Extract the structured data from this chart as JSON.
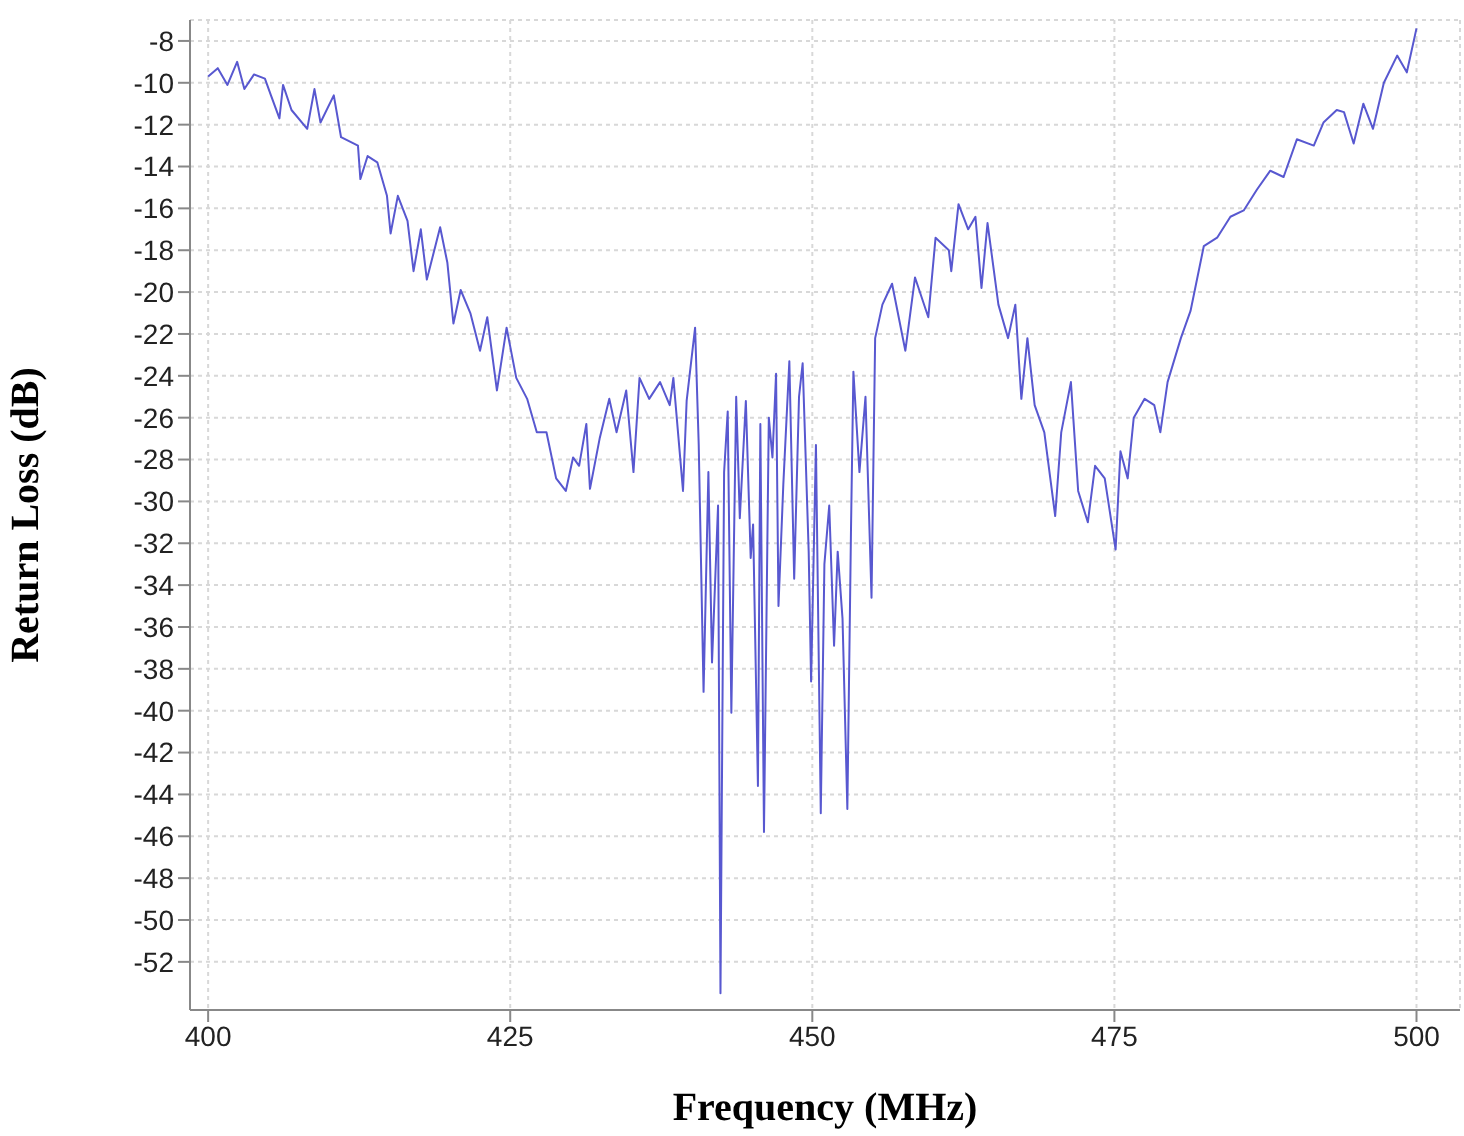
{
  "chart_data": {
    "type": "line",
    "xlabel": "Frequency (MHz)",
    "ylabel": "Return Loss (dB)",
    "xlim": [
      398.5,
      503.6
    ],
    "xticks": [
      400,
      425,
      450,
      475,
      500
    ],
    "ylim": [
      -54.3,
      -7
    ],
    "yticks": [
      -8,
      -10,
      -12,
      -14,
      -16,
      -18,
      -20,
      -22,
      -24,
      -26,
      -28,
      -30,
      -32,
      -34,
      -36,
      -38,
      -40,
      -42,
      -44,
      -46,
      -48,
      -50,
      -52
    ],
    "grid": true,
    "marker": "none",
    "line_style": "solid",
    "series": [
      {
        "color": "#5858d0",
        "x": [
          400,
          400.8,
          401.6,
          402.4,
          403,
          403.8,
          404.7,
          405.2,
          405.9,
          406.2,
          406.9,
          408.2,
          408.8,
          409.3,
          410.4,
          411,
          412.4,
          412.6,
          413.2,
          414,
          414.8,
          415.1,
          415.7,
          416.5,
          417,
          417.6,
          418.1,
          419.2,
          419.8,
          420.3,
          420.9,
          421.7,
          422.5,
          423.1,
          423.9,
          424.7,
          425.5,
          426.4,
          427.2,
          428,
          428.8,
          429.6,
          430.2,
          430.7,
          431.3,
          431.6,
          432.4,
          433.2,
          433.8,
          434.6,
          435.2,
          435.7,
          436.5,
          437.4,
          438.2,
          438.5,
          439.3,
          439.6,
          440.3,
          440.6,
          441,
          441.4,
          441.7,
          442.2,
          442.4,
          442.7,
          443,
          443.3,
          443.7,
          444,
          444.5,
          444.9,
          445.1,
          445.5,
          445.7,
          446,
          446.4,
          446.7,
          447,
          447.2,
          447.6,
          448.1,
          448.5,
          448.9,
          449.2,
          449.7,
          449.9,
          450.3,
          450.7,
          451,
          451.4,
          451.8,
          452.1,
          452.5,
          452.9,
          453.2,
          453.4,
          453.9,
          454.4,
          454.9,
          455.2,
          455.8,
          456.6,
          457.7,
          458.5,
          459.6,
          460.2,
          461.3,
          461.5,
          462.1,
          462.9,
          463.5,
          464,
          464.5,
          465.4,
          466.2,
          466.8,
          467.3,
          467.8,
          468.4,
          469.2,
          470.1,
          470.6,
          471.4,
          472,
          472.8,
          473.4,
          474.2,
          475.1,
          475.5,
          476.1,
          476.6,
          477.5,
          478.3,
          478.8,
          479.4,
          480.5,
          481.3,
          482.4,
          483.5,
          484.6,
          485.7,
          486.8,
          487.9,
          489,
          490.1,
          491.5,
          492.3,
          493.4,
          494,
          494.8,
          495.6,
          496.4,
          497.3,
          498.4,
          499.2,
          500
        ],
        "values": [
          -9.7,
          -9.3,
          -10.1,
          -9,
          -10.3,
          -9.6,
          -9.8,
          -10.6,
          -11.7,
          -10.1,
          -11.3,
          -12.2,
          -10.3,
          -11.9,
          -10.6,
          -12.6,
          -13,
          -14.6,
          -13.5,
          -13.8,
          -15.4,
          -17.2,
          -15.4,
          -16.6,
          -19,
          -17,
          -19.4,
          -16.9,
          -18.6,
          -21.5,
          -19.9,
          -21,
          -22.8,
          -21.2,
          -24.7,
          -21.7,
          -24.1,
          -25.1,
          -26.7,
          -26.7,
          -28.9,
          -29.5,
          -27.9,
          -28.3,
          -26.3,
          -29.4,
          -27,
          -25.1,
          -26.7,
          -24.7,
          -28.6,
          -24.1,
          -25.1,
          -24.3,
          -25.4,
          -24.1,
          -29.5,
          -25.2,
          -21.7,
          -27.3,
          -39.1,
          -28.6,
          -37.7,
          -30.2,
          -53.5,
          -28.6,
          -25.7,
          -40.1,
          -25,
          -30.8,
          -25.2,
          -32.7,
          -31.1,
          -43.6,
          -26.3,
          -45.8,
          -26,
          -27.9,
          -23.9,
          -35,
          -29.2,
          -23.3,
          -33.7,
          -25,
          -23.4,
          -32.4,
          -38.6,
          -27.3,
          -44.9,
          -33,
          -30.2,
          -36.9,
          -32.4,
          -35.6,
          -44.7,
          -31.4,
          -23.8,
          -28.6,
          -25,
          -34.6,
          -22.2,
          -20.6,
          -19.6,
          -22.8,
          -19.3,
          -21.2,
          -17.4,
          -18,
          -19,
          -15.8,
          -17,
          -16.4,
          -19.8,
          -16.7,
          -20.6,
          -22.2,
          -20.6,
          -25.1,
          -22.2,
          -25.4,
          -26.7,
          -30.7,
          -26.7,
          -24.3,
          -29.5,
          -31,
          -28.3,
          -28.9,
          -32.3,
          -27.6,
          -28.9,
          -26,
          -25.1,
          -25.4,
          -26.7,
          -24.3,
          -22.2,
          -20.9,
          -17.8,
          -17.4,
          -16.4,
          -16.1,
          -15.1,
          -14.2,
          -14.5,
          -12.7,
          -13,
          -11.9,
          -11.3,
          -11.4,
          -12.9,
          -11,
          -12.2,
          -10,
          -8.7,
          -9.5,
          -7.4
        ]
      }
    ]
  }
}
